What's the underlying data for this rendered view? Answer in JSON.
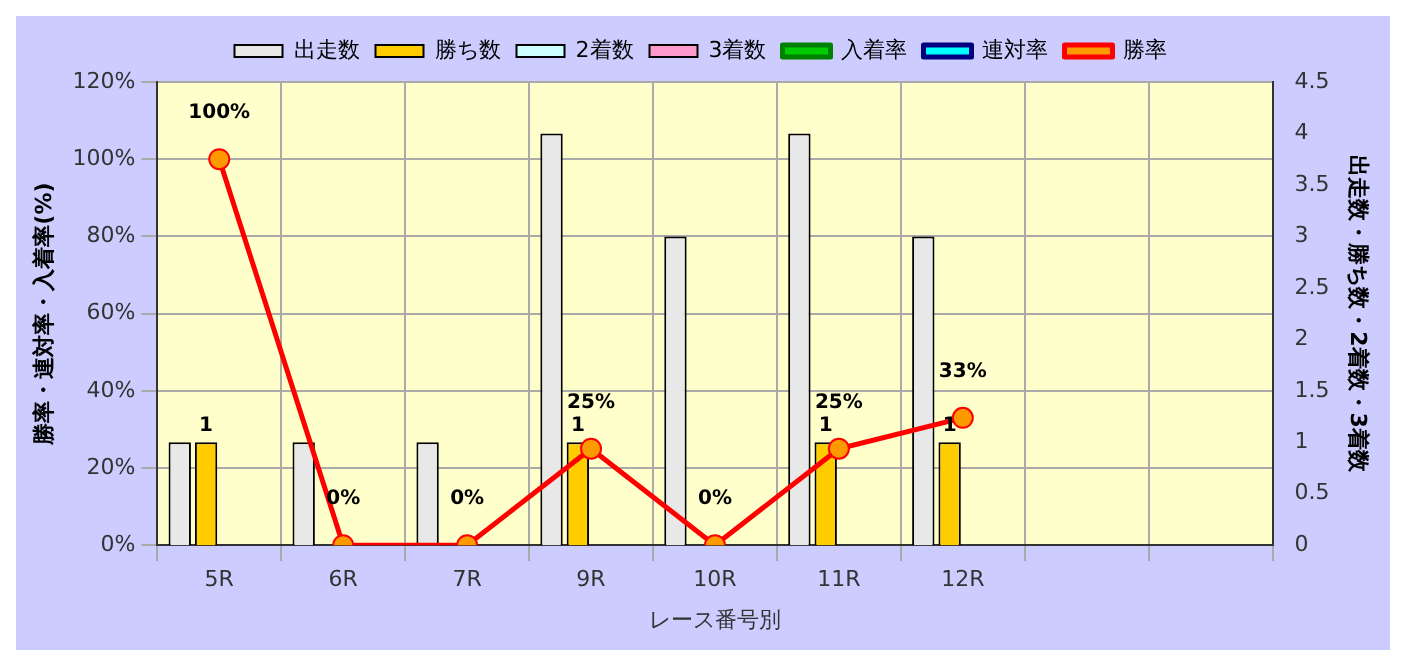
{
  "chart_data": {
    "type": "bar",
    "xlabel": "レース番号別",
    "ylabel": "勝率・連対率・入着率(%)",
    "y2label": "出走数・勝ち数・2着数・3着数",
    "categories": [
      "5R",
      "6R",
      "7R",
      "9R",
      "10R",
      "11R",
      "12R",
      null,
      null
    ],
    "series": [
      {
        "name": "出走数",
        "axis": "y2",
        "color": "#e8e8e8",
        "values": [
          1,
          1,
          1,
          4,
          3,
          4,
          3,
          null,
          null
        ]
      },
      {
        "name": "勝ち数",
        "axis": "y2",
        "color": "#ffcc00",
        "values": [
          1,
          0,
          0,
          1,
          0,
          1,
          1,
          null,
          null
        ],
        "value_labels": [
          "1",
          null,
          null,
          "1",
          null,
          "1",
          "1",
          null,
          null
        ]
      },
      {
        "name": "2着数",
        "axis": "y2",
        "color": "#ccffff",
        "values": [
          0,
          0,
          0,
          0,
          0,
          0,
          0,
          null,
          null
        ]
      },
      {
        "name": "3着数",
        "axis": "y2",
        "color": "#ff99cc",
        "values": [
          0,
          0,
          0,
          0,
          0,
          0,
          0,
          null,
          null
        ]
      },
      {
        "name": "入着率",
        "type": "line",
        "axis": "y",
        "color": "#008000",
        "marker": "triangle",
        "values": [
          null,
          null,
          null,
          null,
          null,
          null,
          null,
          null,
          null
        ]
      },
      {
        "name": "連対率",
        "type": "line",
        "axis": "y",
        "color": "#000080",
        "marker": "diamond",
        "values": [
          null,
          null,
          null,
          null,
          null,
          null,
          null,
          null,
          null
        ]
      },
      {
        "name": "勝率",
        "type": "line",
        "axis": "y",
        "color": "#ff0000",
        "marker": "circle",
        "values": [
          100,
          0,
          0,
          25,
          0,
          25,
          33,
          null,
          null
        ],
        "value_labels": [
          "100%",
          "0%",
          "0%",
          "25%",
          "0%",
          "25%",
          "33%",
          null,
          null
        ]
      }
    ],
    "ylim": [
      0,
      120
    ],
    "yticks": [
      {
        "value": 0,
        "label": "0%"
      },
      {
        "value": 20,
        "label": "20%"
      },
      {
        "value": 40,
        "label": "40%"
      },
      {
        "value": 60,
        "label": "60%"
      },
      {
        "value": 80,
        "label": "80%"
      },
      {
        "value": 100,
        "label": "100%"
      },
      {
        "value": 120,
        "label": "120%"
      }
    ],
    "y2lim": [
      0,
      4.5
    ],
    "y2ticks": [
      0,
      0.5,
      1,
      1.5,
      2,
      2.5,
      3,
      3.5,
      4,
      4.5
    ],
    "grid": true,
    "legend": "top"
  }
}
